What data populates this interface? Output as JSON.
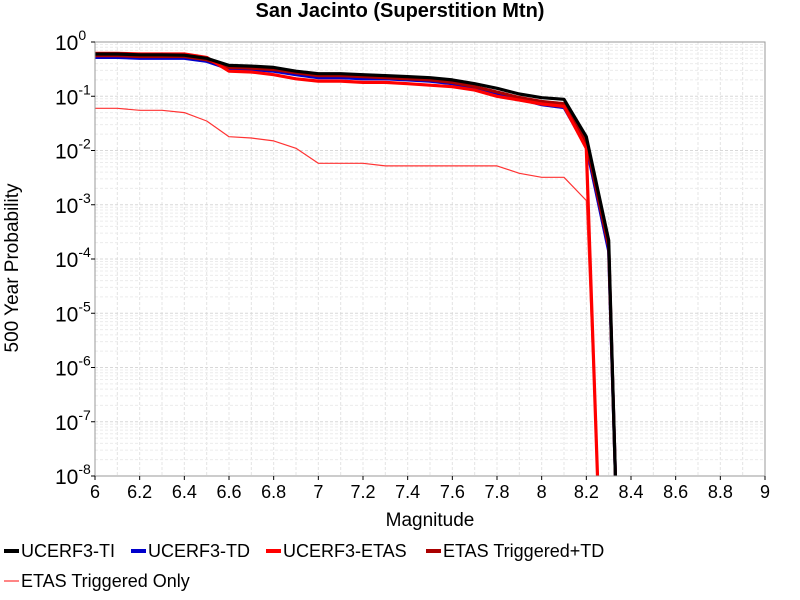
{
  "chart_data": {
    "type": "line",
    "title": "San Jacinto (Superstition Mtn)",
    "xlabel": "Magnitude",
    "ylabel": "500 Year Probability",
    "xlim": [
      6,
      9
    ],
    "ylim": [
      1e-08,
      1
    ],
    "y_scale": "log",
    "grid": true,
    "legend_position": "bottom",
    "x_ticks": [
      "6",
      "6.2",
      "6.4",
      "6.6",
      "6.8",
      "7",
      "7.2",
      "7.4",
      "7.6",
      "7.8",
      "8",
      "8.2",
      "8.4",
      "8.6",
      "8.8",
      "9"
    ],
    "y_ticks": [
      {
        "base": "10",
        "exp": "0"
      },
      {
        "base": "10",
        "exp": "-1"
      },
      {
        "base": "10",
        "exp": "-2"
      },
      {
        "base": "10",
        "exp": "-3"
      },
      {
        "base": "10",
        "exp": "-4"
      },
      {
        "base": "10",
        "exp": "-5"
      },
      {
        "base": "10",
        "exp": "-6"
      },
      {
        "base": "10",
        "exp": "-7"
      },
      {
        "base": "10",
        "exp": "-8"
      }
    ],
    "series": [
      {
        "name": "UCERF3-TI",
        "color": "#000000",
        "width": 3.2,
        "x": [
          6.0,
          6.1,
          6.2,
          6.3,
          6.4,
          6.5,
          6.6,
          6.7,
          6.8,
          6.9,
          7.0,
          7.1,
          7.2,
          7.3,
          7.4,
          7.5,
          7.6,
          7.7,
          7.8,
          7.9,
          8.0,
          8.1,
          8.2,
          8.3,
          8.33
        ],
        "y": [
          0.6,
          0.6,
          0.58,
          0.58,
          0.57,
          0.5,
          0.37,
          0.36,
          0.34,
          0.29,
          0.26,
          0.26,
          0.25,
          0.24,
          0.23,
          0.22,
          0.2,
          0.17,
          0.14,
          0.11,
          0.094,
          0.088,
          0.018,
          0.00022,
          1e-08
        ]
      },
      {
        "name": "UCERF3-TD",
        "color": "#0000cc",
        "width": 3.2,
        "x": [
          6.0,
          6.1,
          6.2,
          6.3,
          6.4,
          6.5,
          6.6,
          6.7,
          6.8,
          6.9,
          7.0,
          7.1,
          7.2,
          7.3,
          7.4,
          7.5,
          7.6,
          7.7,
          7.8,
          7.9,
          8.0,
          8.1,
          8.2,
          8.3,
          8.33
        ],
        "y": [
          0.52,
          0.52,
          0.5,
          0.5,
          0.5,
          0.44,
          0.32,
          0.31,
          0.29,
          0.25,
          0.22,
          0.22,
          0.21,
          0.21,
          0.2,
          0.19,
          0.17,
          0.14,
          0.11,
          0.09,
          0.07,
          0.062,
          0.012,
          0.00014,
          1e-08
        ]
      },
      {
        "name": "UCERF3-ETAS",
        "color": "#ff0000",
        "width": 3.2,
        "x": [
          6.0,
          6.1,
          6.2,
          6.3,
          6.4,
          6.5,
          6.6,
          6.7,
          6.8,
          6.9,
          7.0,
          7.1,
          7.2,
          7.3,
          7.4,
          7.5,
          7.6,
          7.7,
          7.8,
          7.9,
          8.0,
          8.1,
          8.2,
          8.25
        ],
        "y": [
          0.62,
          0.62,
          0.6,
          0.6,
          0.6,
          0.52,
          0.29,
          0.28,
          0.25,
          0.21,
          0.19,
          0.19,
          0.18,
          0.18,
          0.17,
          0.16,
          0.15,
          0.13,
          0.1,
          0.085,
          0.072,
          0.065,
          0.011,
          1e-08
        ]
      },
      {
        "name": "ETAS Triggered+TD",
        "color": "#aa0000",
        "width": 3.2,
        "x": [
          6.0,
          6.1,
          6.2,
          6.3,
          6.4,
          6.5,
          6.6,
          6.7,
          6.8,
          6.9,
          7.0,
          7.1,
          7.2,
          7.3,
          7.4,
          7.5,
          7.6,
          7.7,
          7.8,
          7.9,
          8.0,
          8.1,
          8.2,
          8.3,
          8.33
        ],
        "y": [
          0.56,
          0.56,
          0.54,
          0.54,
          0.54,
          0.47,
          0.34,
          0.33,
          0.31,
          0.27,
          0.24,
          0.24,
          0.23,
          0.22,
          0.21,
          0.2,
          0.18,
          0.15,
          0.12,
          0.095,
          0.08,
          0.073,
          0.014,
          0.00017,
          1e-08
        ]
      },
      {
        "name": "ETAS Triggered Only",
        "color": "#ff3333",
        "width": 1.2,
        "x": [
          6.0,
          6.1,
          6.2,
          6.3,
          6.4,
          6.5,
          6.6,
          6.7,
          6.8,
          6.9,
          7.0,
          7.1,
          7.2,
          7.3,
          7.4,
          7.5,
          7.6,
          7.7,
          7.8,
          7.9,
          8.0,
          8.1,
          8.2,
          8.25
        ],
        "y": [
          0.06,
          0.06,
          0.055,
          0.055,
          0.05,
          0.035,
          0.018,
          0.017,
          0.015,
          0.011,
          0.0058,
          0.0058,
          0.0058,
          0.0052,
          0.0052,
          0.0052,
          0.0052,
          0.0052,
          0.0052,
          0.0038,
          0.0032,
          0.0032,
          0.0012,
          1e-08
        ]
      }
    ]
  }
}
